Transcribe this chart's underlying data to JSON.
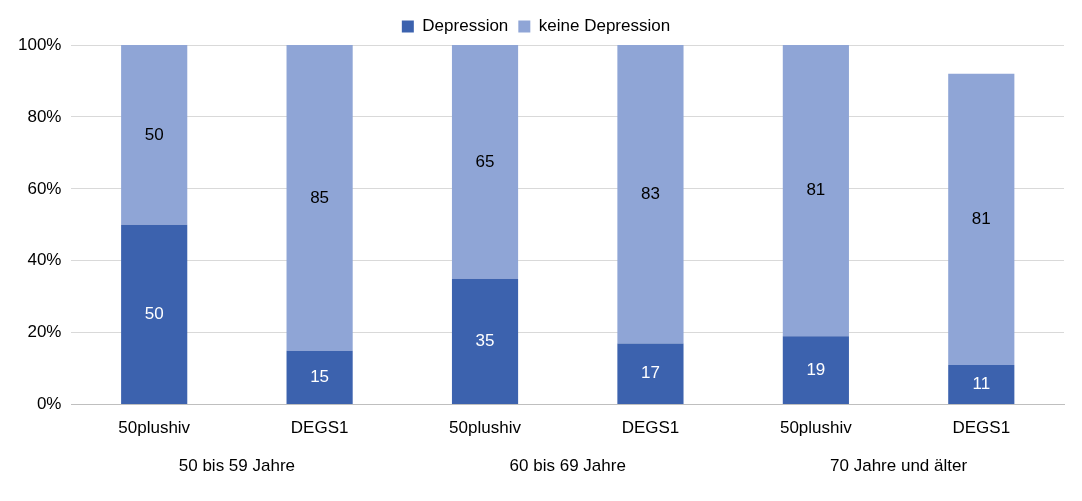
{
  "chart_data": {
    "type": "bar",
    "stacked": true,
    "categories": [
      "50plushiv",
      "DEGS1",
      "50plushiv",
      "DEGS1",
      "50plushiv",
      "DEGS1"
    ],
    "series": [
      {
        "name": "Depression",
        "color": "#3c62ae",
        "values": [
          50,
          15,
          35,
          17,
          19,
          11
        ]
      },
      {
        "name": "keine Depression",
        "color": "#8fa5d6",
        "values": [
          50,
          85,
          65,
          83,
          81,
          81
        ]
      }
    ],
    "data_labels": true,
    "ylim": [
      0,
      100
    ],
    "yticks": [
      {
        "value": 0,
        "label": "0%"
      },
      {
        "value": 20,
        "label": "20%"
      },
      {
        "value": 40,
        "label": "40%"
      },
      {
        "value": 60,
        "label": "60%"
      },
      {
        "value": 80,
        "label": "80%"
      },
      {
        "value": 100,
        "label": "100%"
      }
    ],
    "grid": "y",
    "legend": "top",
    "annotations": [
      "50 bis 59 Jahre",
      "60 bis 69 Jahre",
      "70 Jahre und älter"
    ]
  }
}
